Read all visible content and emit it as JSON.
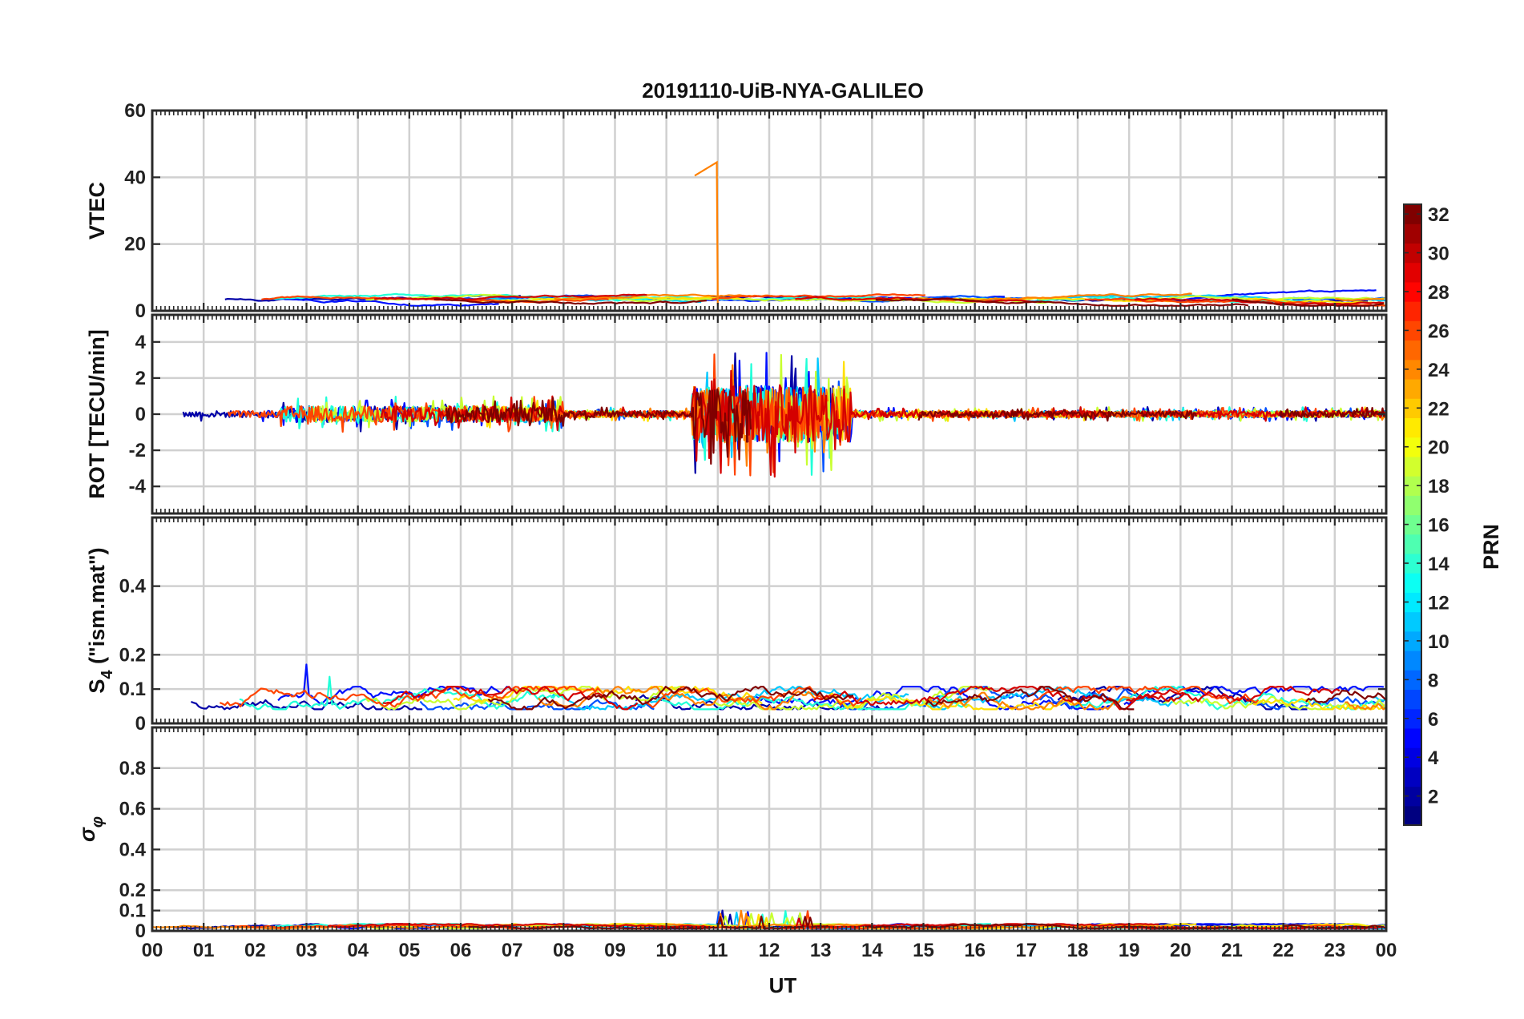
{
  "chart_data": {
    "type": "line",
    "title": "20191110-UiB-NYA-GALILEO",
    "xlabel": "UT",
    "x_tick_labels": [
      "00",
      "01",
      "02",
      "03",
      "04",
      "05",
      "06",
      "07",
      "08",
      "09",
      "10",
      "11",
      "12",
      "13",
      "14",
      "15",
      "16",
      "17",
      "18",
      "19",
      "20",
      "21",
      "22",
      "23",
      "00"
    ],
    "xlim_hours": [
      0,
      24
    ],
    "grid": true,
    "panels": [
      {
        "id": "vtec",
        "ylabel": "VTEC",
        "ylim": [
          0,
          60
        ],
        "yticks": [
          0,
          20,
          40,
          60
        ],
        "ytick_labels": [
          "0",
          "20",
          "40",
          "60"
        ],
        "baseline": 3.5,
        "noise": 1.0,
        "spike": 0,
        "spikeWindow": [
          0,
          0
        ],
        "annotation": {
          "series": "PRN 24",
          "x": [
            10.55,
            10.98,
            11.0
          ],
          "y": [
            40.5,
            44.5,
            2.0
          ]
        }
      },
      {
        "id": "rot",
        "ylabel": "ROT [TECU/min]",
        "ylim": [
          -5.5,
          5.5
        ],
        "yticks": [
          -4,
          -2,
          0,
          2,
          4
        ],
        "ytick_labels": [
          "-4",
          "-2",
          "0",
          "2",
          "4"
        ],
        "baseline": 0.0,
        "noise": 0.25,
        "spike": 3.5,
        "spikeWindow": [
          10.5,
          13.6
        ]
      },
      {
        "id": "s4",
        "ylabel": "S4 (\"ism.mat\")",
        "ylabel_main": "S",
        "ylabel_sub": "4",
        "ylabel_rest": " (\"ism.mat\")",
        "ylim": [
          0,
          0.6
        ],
        "yticks": [
          0,
          0.1,
          0.2,
          0.4
        ],
        "ytick_labels": [
          "0",
          "0.1",
          "0.2",
          "0.4"
        ],
        "baseline": 0.065,
        "noise": 0.03,
        "spike": 0.21,
        "spikeWindow": [
          2.8,
          3.5
        ]
      },
      {
        "id": "sigma",
        "ylabel": "σφ",
        "ylabel_main": "σ",
        "ylabel_sub": "φ",
        "ylim": [
          0,
          1.0
        ],
        "yticks": [
          0,
          0.1,
          0.2,
          0.4,
          0.6,
          0.8
        ],
        "ytick_labels": [
          "0",
          "0.1",
          "0.2",
          "0.4",
          "0.6",
          "0.8"
        ],
        "baseline": 0.02,
        "noise": 0.01,
        "spike": 0.1,
        "spikeWindow": [
          11.0,
          13.0
        ]
      }
    ],
    "series": [
      {
        "name": "PRN 2",
        "color": "#0000a8"
      },
      {
        "name": "PRN 4",
        "color": "#0010ff"
      },
      {
        "name": "PRN 7",
        "color": "#0050ff"
      },
      {
        "name": "PRN 11",
        "color": "#00c8ff"
      },
      {
        "name": "PRN 13",
        "color": "#20ffd8"
      },
      {
        "name": "PRN 19",
        "color": "#c8ff30"
      },
      {
        "name": "PRN 21",
        "color": "#ffe000"
      },
      {
        "name": "PRN 24",
        "color": "#ff8000"
      },
      {
        "name": "PRN 26",
        "color": "#ff4400"
      },
      {
        "name": "PRN 30",
        "color": "#d40000"
      },
      {
        "name": "PRN 33",
        "color": "#800000"
      }
    ],
    "colorbar": {
      "label": "PRN",
      "range": [
        1,
        32
      ],
      "ticks": [
        2,
        4,
        6,
        8,
        10,
        12,
        14,
        16,
        18,
        20,
        22,
        24,
        26,
        28,
        30,
        32
      ],
      "tick_labels": [
        "2",
        "4",
        "6",
        "8",
        "10",
        "12",
        "14",
        "16",
        "18",
        "20",
        "22",
        "24",
        "26",
        "28",
        "30",
        "32"
      ],
      "colormap": "jet",
      "placement": "right"
    }
  }
}
